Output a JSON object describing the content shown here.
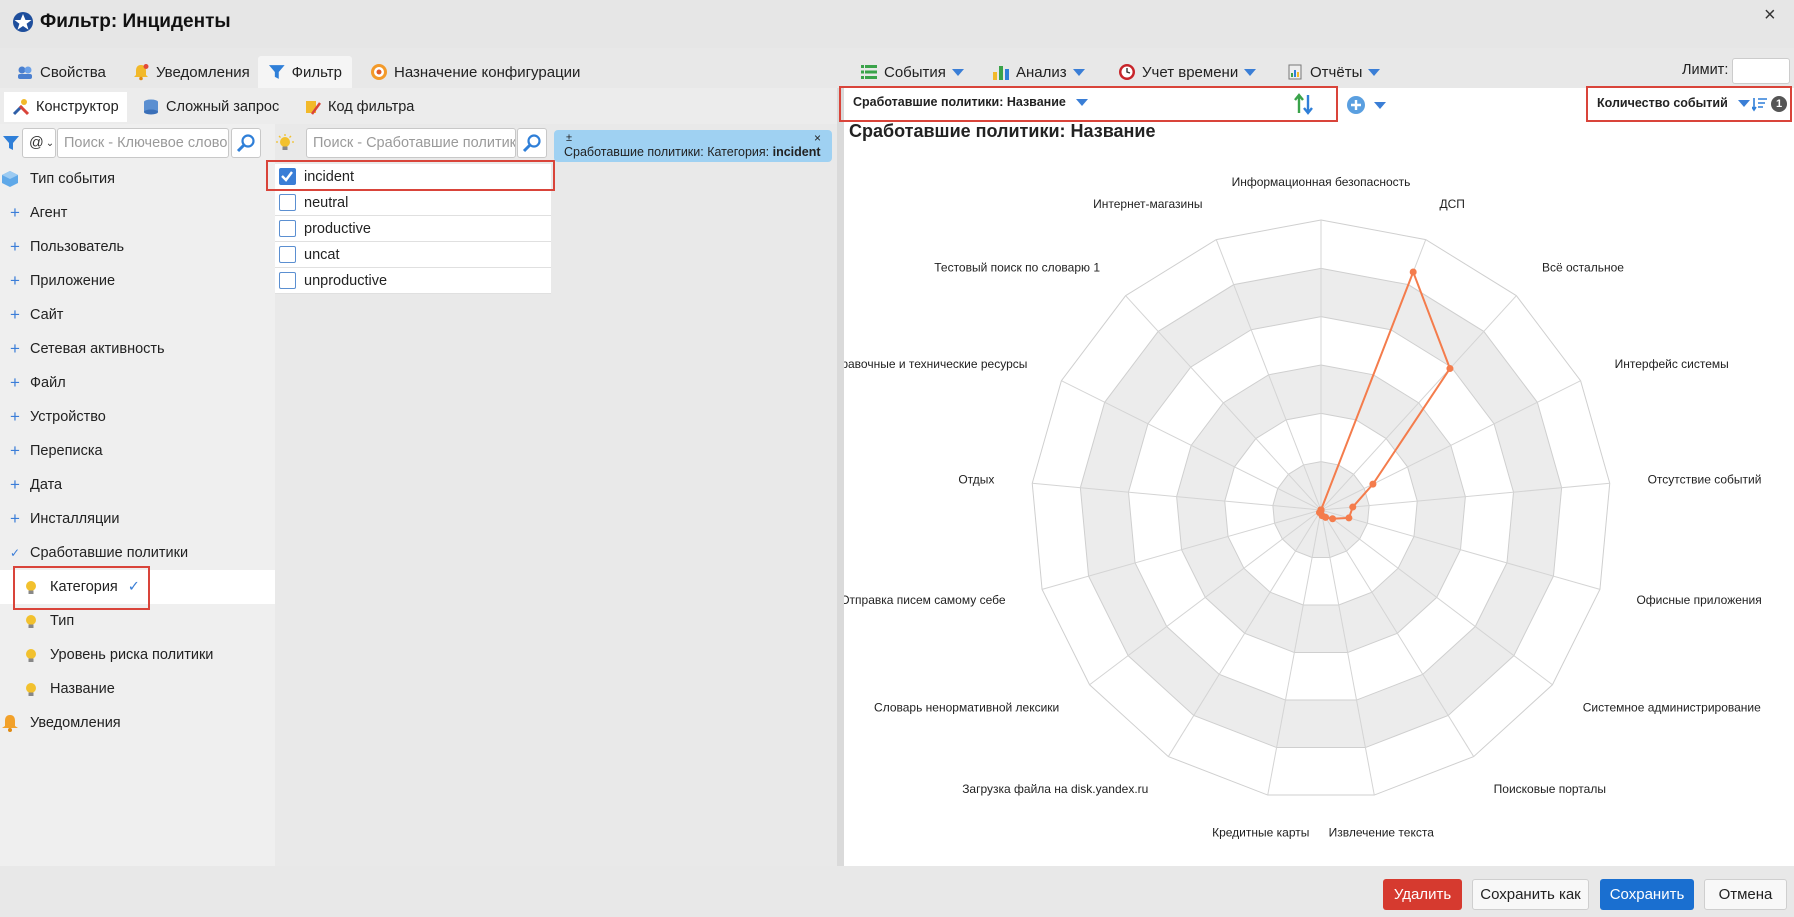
{
  "window": {
    "title": "Фильтр: Инциденты",
    "close_glyph": "×"
  },
  "top_tabs": [
    {
      "label": "Свойства",
      "icon": "gear-people-icon"
    },
    {
      "label": "Уведомления",
      "icon": "bell-icon"
    },
    {
      "label": "Фильтр",
      "icon": "funnel-icon",
      "active": true
    },
    {
      "label": "Назначение конфигурации",
      "icon": "target-icon"
    }
  ],
  "right_menus": [
    {
      "label": "События",
      "icon": "list-icon"
    },
    {
      "label": "Анализ",
      "icon": "bar-chart-icon"
    },
    {
      "label": "Учет времени",
      "icon": "clock-icon"
    },
    {
      "label": "Отчёты",
      "icon": "report-icon"
    }
  ],
  "limit": {
    "label": "Лимит:",
    "value": ""
  },
  "sub_tabs": [
    {
      "label": "Конструктор",
      "icon": "tools-icon",
      "active": true
    },
    {
      "label": "Сложный запрос",
      "icon": "database-icon"
    },
    {
      "label": "Код фильтра",
      "icon": "pencil-code-icon"
    }
  ],
  "left_search": {
    "mode": "@",
    "placeholder": "Поиск - Ключевое слово"
  },
  "mid_search": {
    "placeholder": "Поиск - Сработавшие политики"
  },
  "tree": {
    "root": "Тип события",
    "items": [
      "Агент",
      "Пользователь",
      "Приложение",
      "Сайт",
      "Сетевая активность",
      "Файл",
      "Устройство",
      "Переписка",
      "Дата",
      "Инсталляции"
    ],
    "expanded": "Сработавшие политики",
    "children": [
      "Категория",
      "Тип",
      "Уровень риска политики",
      "Название"
    ],
    "last": "Уведомления"
  },
  "categories": [
    {
      "label": "incident",
      "checked": true
    },
    {
      "label": "neutral",
      "checked": false
    },
    {
      "label": "productive",
      "checked": false
    },
    {
      "label": "uncat",
      "checked": false
    },
    {
      "label": "unproductive",
      "checked": false
    }
  ],
  "filter_chip": {
    "toggle": "±",
    "text": "Сработавшие политики: Категория:",
    "value": "incident",
    "close": "×"
  },
  "chart_toolbar": {
    "group_by": "Сработавшие политики: Название",
    "metric": "Количество событий",
    "sort_badge": "1"
  },
  "chart_data": {
    "type": "radar",
    "title": "Сработавшие политики: Название",
    "categories": [
      "Информационная безопасность",
      "ДСП",
      "Всё остальное",
      "Интерфейс системы",
      "Отсутствие событий",
      "Офисные приложения",
      "Системное администрирование",
      "Поисковые порталы",
      "Извлечение текста",
      "Кредитные карты",
      "Загрузка файла на disk.yandex.ru",
      "Словарь ненормативной лексики",
      "Отправка писем самому себе",
      "Отдых",
      "Справочные и технические ресурсы",
      "Тестовый поиск по словарю 1",
      "Интернет-магазины"
    ],
    "series": [
      {
        "color": "#f47c4c",
        "values": [
          0.0,
          0.88,
          0.66,
          0.2,
          0.11,
          0.1,
          0.05,
          0.03,
          0.02,
          0.01,
          0.01,
          0.0,
          0.0,
          0.0,
          0.0,
          0.0,
          0.0
        ]
      }
    ],
    "grid_levels": 6,
    "legend": false
  },
  "buttons": {
    "delete": "Удалить",
    "save_as": "Сохранить как",
    "save": "Сохранить",
    "cancel": "Отмена"
  },
  "colors": {
    "accent": "#3a7ed6",
    "highlight": "#d9443a",
    "delete": "#d63a2f",
    "save": "#1a6fd0",
    "series": "#f47c4c"
  }
}
